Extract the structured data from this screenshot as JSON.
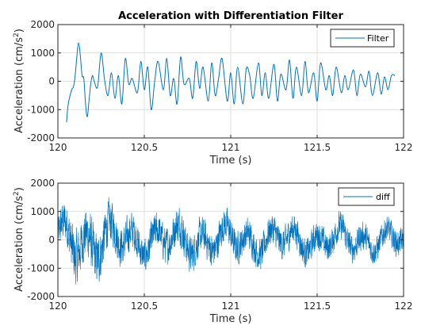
{
  "figure": {
    "background": "#ffffff",
    "line_color": "#0072bd"
  },
  "chart_data": [
    {
      "type": "line",
      "title": "Acceleration with Differentiation Filter",
      "xlabel": "Time (s)",
      "ylabel": "Acceleration (cm/s2)",
      "xlim": [
        120,
        122
      ],
      "ylim": [
        -2000,
        2000
      ],
      "xticks": [
        120,
        120.5,
        121,
        121.5,
        122
      ],
      "xtick_labels": [
        "120",
        "120.5",
        "121",
        "121.5",
        "122"
      ],
      "yticks": [
        -2000,
        -1000,
        0,
        1000,
        2000
      ],
      "ytick_labels": [
        "-2000",
        "-1000",
        "0",
        "1000",
        "2000"
      ],
      "grid": true,
      "legend_position": "top-right",
      "series": [
        {
          "name": "Filter",
          "color": "#0072bd",
          "x": [
            120.05,
            120.06,
            120.08,
            120.09,
            120.1,
            120.11,
            120.12,
            120.13,
            120.14,
            120.15,
            120.16,
            120.17,
            120.18,
            120.19,
            120.2,
            120.21,
            120.23,
            120.25,
            120.27,
            120.29,
            120.31,
            120.33,
            120.35,
            120.37,
            120.39,
            120.41,
            120.43,
            120.46,
            120.48,
            120.5,
            120.52,
            120.54,
            120.56,
            120.58,
            120.61,
            120.63,
            120.65,
            120.67,
            120.69,
            120.71,
            120.73,
            120.76,
            120.78,
            120.8,
            120.82,
            120.84,
            120.87,
            120.89,
            120.91,
            120.93,
            120.95,
            120.98,
            121.0,
            121.02,
            121.04,
            121.07,
            121.09,
            121.11,
            121.13,
            121.16,
            121.18,
            121.2,
            121.22,
            121.25,
            121.27,
            121.29,
            121.32,
            121.34,
            121.36,
            121.38,
            121.41,
            121.43,
            121.45,
            121.48,
            121.5,
            121.52,
            121.55,
            121.57,
            121.59,
            121.61,
            121.64,
            121.66,
            121.68,
            121.71,
            121.73,
            121.75,
            121.78,
            121.8,
            121.82,
            121.85,
            121.87,
            121.89,
            121.91,
            121.93,
            121.95
          ],
          "y": [
            -1450,
            -800,
            -300,
            -200,
            200,
            900,
            1350,
            900,
            200,
            100,
            -800,
            -1250,
            -700,
            -100,
            200,
            0,
            -200,
            1000,
            50,
            -500,
            300,
            -600,
            200,
            -800,
            800,
            -100,
            100,
            -400,
            700,
            -300,
            500,
            -1000,
            0,
            700,
            -300,
            800,
            -500,
            100,
            -800,
            850,
            -100,
            100,
            -600,
            700,
            -250,
            500,
            -700,
            650,
            -500,
            100,
            800,
            -700,
            300,
            -800,
            500,
            -800,
            450,
            200,
            -600,
            650,
            -500,
            300,
            -600,
            600,
            -700,
            250,
            -300,
            750,
            -600,
            500,
            -500,
            700,
            -400,
            300,
            -700,
            650,
            -300,
            200,
            -500,
            500,
            -400,
            200,
            -300,
            400,
            -500,
            250,
            -200,
            350,
            -500,
            300,
            -450,
            150,
            -300,
            200,
            200
          ]
        }
      ]
    },
    {
      "type": "line",
      "title": "",
      "xlabel": "Time (s)",
      "ylabel": "Acceleration (cm/s2)",
      "xlim": [
        120,
        122
      ],
      "ylim": [
        -2000,
        2000
      ],
      "xticks": [
        120,
        120.5,
        121,
        121.5,
        122
      ],
      "xtick_labels": [
        "120",
        "120.5",
        "121",
        "121.5",
        "122"
      ],
      "yticks": [
        -2000,
        -1000,
        0,
        1000,
        2000
      ],
      "ytick_labels": [
        "-2000",
        "-1000",
        "0",
        "1000",
        "2000"
      ],
      "grid": true,
      "legend_position": "top-right",
      "series": [
        {
          "name": "diff",
          "color": "#0072bd",
          "x_start": 120,
          "x_end": 122,
          "amplitude_envelope": [
            [
              120.0,
              1200
            ],
            [
              120.05,
              1500
            ],
            [
              120.1,
              2000
            ],
            [
              120.15,
              1700
            ],
            [
              120.2,
              1900
            ],
            [
              120.3,
              1500
            ],
            [
              120.5,
              1200
            ],
            [
              120.7,
              1300
            ],
            [
              120.9,
              1200
            ],
            [
              121.1,
              1100
            ],
            [
              121.3,
              1100
            ],
            [
              121.5,
              1000
            ],
            [
              121.7,
              1000
            ],
            [
              121.9,
              900
            ],
            [
              122.0,
              900
            ]
          ]
        }
      ]
    }
  ]
}
